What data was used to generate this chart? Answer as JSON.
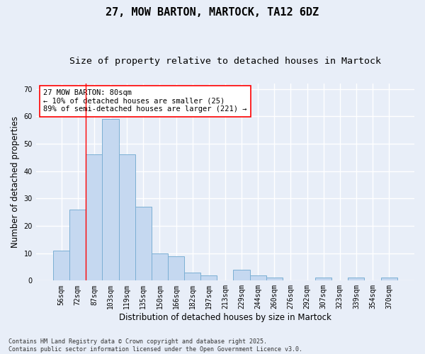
{
  "title1": "27, MOW BARTON, MARTOCK, TA12 6DZ",
  "title2": "Size of property relative to detached houses in Martock",
  "xlabel": "Distribution of detached houses by size in Martock",
  "ylabel": "Number of detached properties",
  "categories": [
    "56sqm",
    "72sqm",
    "87sqm",
    "103sqm",
    "119sqm",
    "135sqm",
    "150sqm",
    "166sqm",
    "182sqm",
    "197sqm",
    "213sqm",
    "229sqm",
    "244sqm",
    "260sqm",
    "276sqm",
    "292sqm",
    "307sqm",
    "323sqm",
    "339sqm",
    "354sqm",
    "370sqm"
  ],
  "values": [
    11,
    26,
    46,
    59,
    46,
    27,
    10,
    9,
    3,
    2,
    0,
    4,
    2,
    1,
    0,
    0,
    1,
    0,
    1,
    0,
    1
  ],
  "bar_color": "#c5d8f0",
  "bar_edge_color": "#7bafd4",
  "red_line_x": 1.5,
  "annotation_text": "27 MOW BARTON: 80sqm\n← 10% of detached houses are smaller (25)\n89% of semi-detached houses are larger (221) →",
  "annotation_box_facecolor": "white",
  "annotation_box_edgecolor": "red",
  "ylim": [
    0,
    72
  ],
  "yticks": [
    0,
    10,
    20,
    30,
    40,
    50,
    60,
    70
  ],
  "footnote": "Contains HM Land Registry data © Crown copyright and database right 2025.\nContains public sector information licensed under the Open Government Licence v3.0.",
  "bg_color": "#e8eef8",
  "plot_bg_color": "#e8eef8",
  "grid_color": "#ffffff",
  "title1_fontsize": 11,
  "title2_fontsize": 9.5,
  "tick_fontsize": 7,
  "ylabel_fontsize": 8.5,
  "xlabel_fontsize": 8.5,
  "annotation_fontsize": 7.5,
  "footnote_fontsize": 6
}
